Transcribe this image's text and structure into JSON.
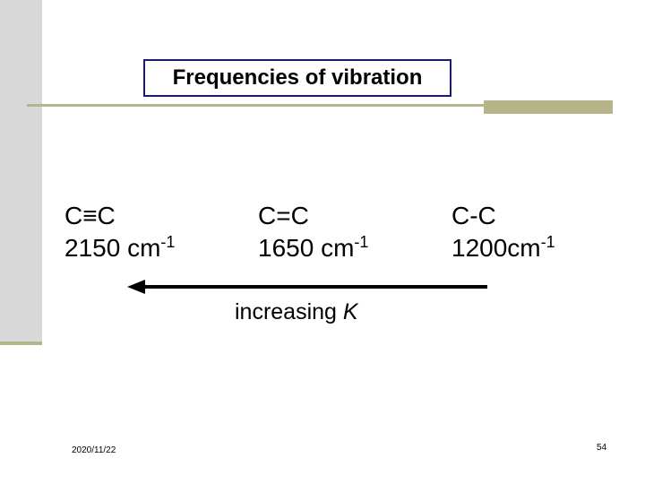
{
  "slide": {
    "title": "Frequencies of vibration",
    "bonds": [
      {
        "symbol": "C≡C",
        "value": "2150 cm",
        "exponent": "-1"
      },
      {
        "symbol": "C=C",
        "value": "1650 cm",
        "exponent": "-1"
      },
      {
        "symbol": "C-C",
        "value": "1200cm",
        "exponent": "-1"
      }
    ],
    "arrow": {
      "label": "increasing ",
      "label_variable": "K",
      "direction": "left"
    }
  },
  "footer": {
    "date": "2020/11/22",
    "page": "54"
  },
  "colors": {
    "accent": "#b5b48a",
    "sidebar": "#d8d8d8",
    "title_border": "#1a1a6e"
  }
}
